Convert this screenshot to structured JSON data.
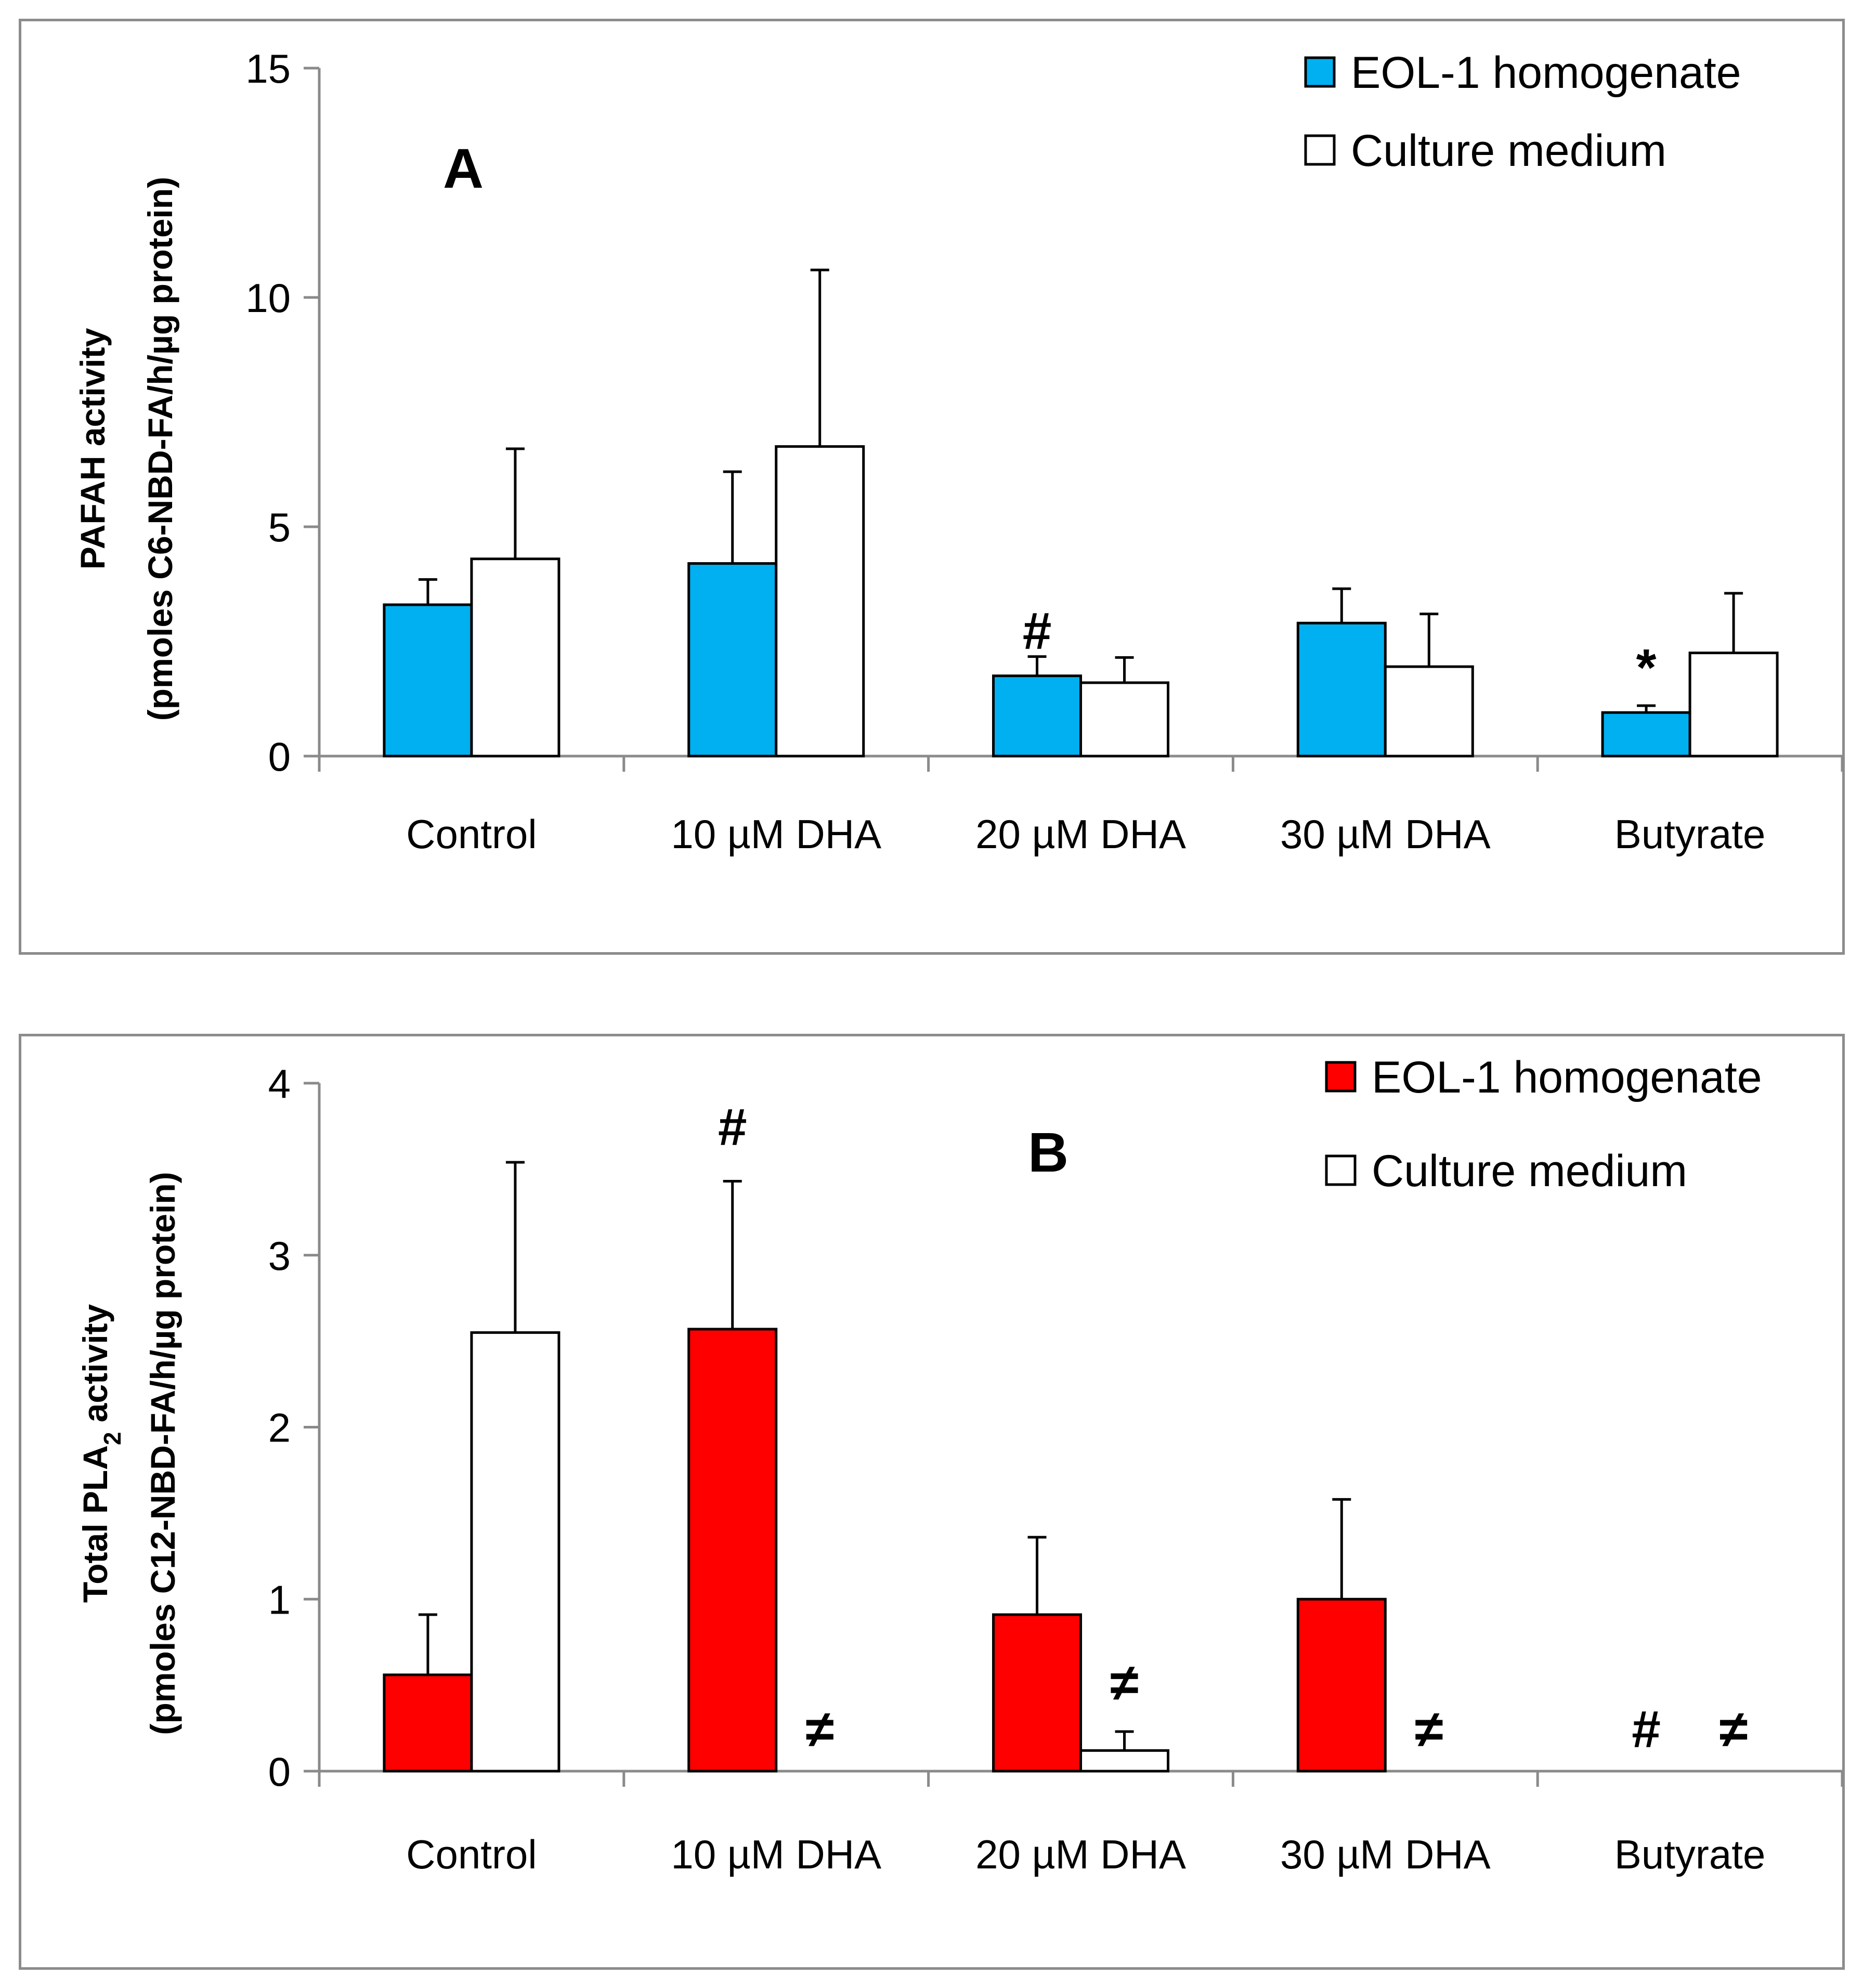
{
  "chart_data": [
    {
      "type": "bar",
      "panel": "A",
      "ylabel_line1": "PAFAH activity",
      "ylabel_line2": "(pmoles C6-NBD-FA/h/µg protein)",
      "ylim": [
        0,
        15
      ],
      "yticks": [
        0,
        5,
        10,
        15
      ],
      "categories": [
        "Control",
        "10 µM DHA",
        "20 µM DHA",
        "30 µM DHA",
        "Butyrate"
      ],
      "series": [
        {
          "name": "EOL-1 homogenate",
          "color": "#00b0f0",
          "values": [
            3.3,
            4.2,
            1.75,
            2.9,
            0.95
          ],
          "errors": [
            0.55,
            2.0,
            0.42,
            0.75,
            0.15
          ]
        },
        {
          "name": "Culture medium",
          "color": "#ffffff",
          "values": [
            4.3,
            6.75,
            1.6,
            1.95,
            2.25
          ],
          "errors": [
            2.4,
            3.85,
            0.55,
            1.15,
            1.3
          ]
        }
      ],
      "annotations": [
        {
          "category": 2,
          "series": 0,
          "text": "#",
          "at": 2.75
        },
        {
          "category": 4,
          "series": 0,
          "text": "*",
          "at": 1.95
        }
      ],
      "legend_position": "top-right"
    },
    {
      "type": "bar",
      "panel": "B",
      "ylabel_line1": "Total PLA",
      "ylabel_sub": "2",
      "ylabel_line1_tail": " activity",
      "ylabel_line2": "(pmoles C12-NBD-FA/h/µg protein)",
      "ylim": [
        0,
        4
      ],
      "yticks": [
        0,
        1,
        2,
        3,
        4
      ],
      "categories": [
        "Control",
        "10 µM DHA",
        "20 µM DHA",
        "30 µM DHA",
        "Butyrate"
      ],
      "series": [
        {
          "name": "EOL-1 homogenate",
          "color": "#ff0000",
          "values": [
            0.56,
            2.57,
            0.91,
            1.0,
            0
          ],
          "errors": [
            0.35,
            0.86,
            0.45,
            0.58,
            0
          ]
        },
        {
          "name": "Culture medium",
          "color": "#ffffff",
          "values": [
            2.55,
            0,
            0.12,
            0,
            0
          ],
          "errors": [
            0.99,
            0,
            0.11,
            0,
            0
          ]
        }
      ],
      "annotations": [
        {
          "category": 1,
          "series": 0,
          "text": "#",
          "at": 3.75
        },
        {
          "category": 1,
          "series": 1,
          "text": "≠",
          "at": 0.25
        },
        {
          "category": 2,
          "series": 1,
          "text": "≠",
          "at": 0.52
        },
        {
          "category": 3,
          "series": 1,
          "text": "≠",
          "at": 0.25
        },
        {
          "category": 4,
          "series": 0,
          "text": "#",
          "at": 0.25
        },
        {
          "category": 4,
          "series": 1,
          "text": "≠",
          "at": 0.25
        }
      ],
      "legend_position": "top-right"
    }
  ]
}
